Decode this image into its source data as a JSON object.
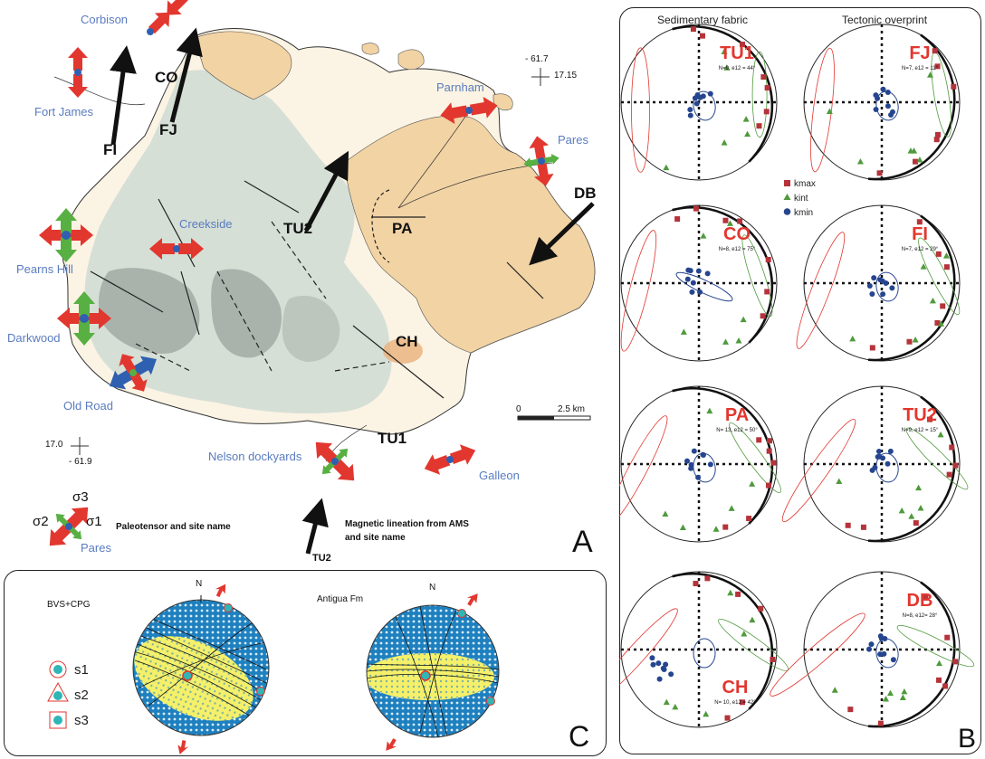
{
  "panel_a": {
    "letter": "A",
    "sites_paleotensor": [
      "Corbison",
      "Fort James",
      "Parnham",
      "Pares",
      "Creekside",
      "Pearns Hill",
      "Darkwood",
      "Old Road",
      "Nelson dockyards",
      "Galleon"
    ],
    "ams_sites": [
      "CO",
      "FJ",
      "FI",
      "TU2",
      "PA",
      "DB",
      "CH",
      "TU1"
    ],
    "coords": {
      "ne_lon": "- 61.7",
      "ne_lat": "17.15",
      "sw_lat": "17.0",
      "sw_lon": "- 61.9"
    },
    "scale": {
      "start": "0",
      "end": "2.5 km"
    },
    "legend": {
      "sigma3": "σ3",
      "sigma2": "σ2",
      "sigma1": "σ1",
      "tensor_site": "Pares",
      "tensor_caption": "Paleotensor and site name",
      "lineation_caption_1": "Magnetic lineation from AMS",
      "lineation_caption_2": "and site name",
      "lineation_site": "TU2"
    },
    "colors": {
      "sea": "#ffffff",
      "volcanic_light": "#d5dfd6",
      "volcanic_dark": "#a9b3ab",
      "limestone": "#f2d3a4",
      "alluvium": "#fbf3e3",
      "compression": "#e2372f",
      "extension_green": "#58b043",
      "blue_arrow": "#2f5fb0"
    }
  },
  "panel_b": {
    "letter": "B",
    "col_left": "Sedimentary fabric",
    "col_right": "Tectonic overprint",
    "legend": {
      "kmax": "kmax",
      "kint": "kint",
      "kmin": "kmin"
    },
    "stereonets": [
      {
        "site": "TU1",
        "stats": "N=9, e12 = 44°"
      },
      {
        "site": "FJ",
        "stats": "N=7, e12 = 11°"
      },
      {
        "site": "CO",
        "stats": "N=8, e12 = 75°"
      },
      {
        "site": "FI",
        "stats": "N=7, e12 = 29°"
      },
      {
        "site": "PA",
        "stats": "N= 13, e12 = 50°"
      },
      {
        "site": "TU2",
        "stats": "N=9, e12 = 15°"
      },
      {
        "site": "CH",
        "stats": "N= 10, e12 = 42°"
      },
      {
        "site": "DB",
        "stats": "N=8, e12= 28°"
      }
    ],
    "colors": {
      "kmax": "#b5333a",
      "kint": "#4f9a3c",
      "kmin": "#26458f"
    }
  },
  "panel_c": {
    "letter": "C",
    "plots": [
      {
        "title": "BVS+CPG",
        "north": "N"
      },
      {
        "title": "Antigua Fm",
        "north": "N"
      }
    ],
    "legend": {
      "s1": "s1",
      "s2": "s2",
      "s3": "s3"
    },
    "colors": {
      "blue": "#1e80bf",
      "yellow": "#f5f06a"
    }
  }
}
